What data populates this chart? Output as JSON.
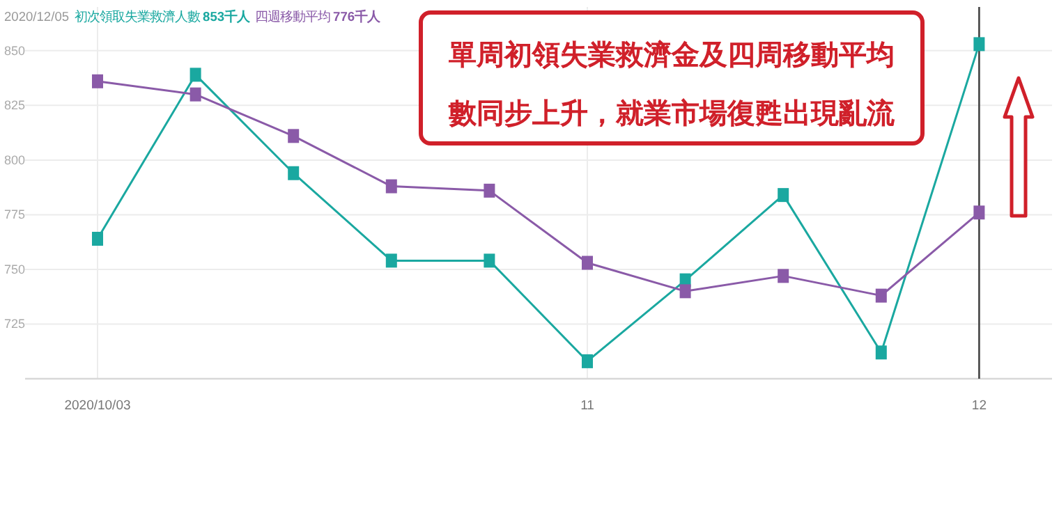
{
  "chart_data": {
    "type": "line",
    "legend_title": "2020/12/05",
    "legend": "top left",
    "marker": "square",
    "grid": true,
    "categories": [
      "2020/10/03",
      null,
      null,
      null,
      null,
      "11",
      null,
      null,
      null,
      "12"
    ],
    "ylim": [
      700,
      870
    ],
    "yticks": [
      725,
      750,
      775,
      800,
      825,
      850
    ],
    "series": [
      {
        "name": "初次領取失業救濟人數",
        "color": "#1aa8a0",
        "values": [
          764,
          839,
          794,
          754,
          754,
          708,
          745,
          784,
          712,
          853
        ]
      },
      {
        "name": "四週移動平均",
        "color": "#8a5aa8",
        "values": [
          836,
          830,
          811,
          788,
          786,
          753,
          740,
          747,
          738,
          776
        ]
      }
    ],
    "ref_lines": [
      {
        "axis": "x",
        "value": "12",
        "color": "#444444"
      }
    ],
    "annotations": [
      "單周初領失業救濟金及四周移動平均數同步上升，就業市場復甦出現亂流",
      "853千人",
      "776千人"
    ]
  }
}
